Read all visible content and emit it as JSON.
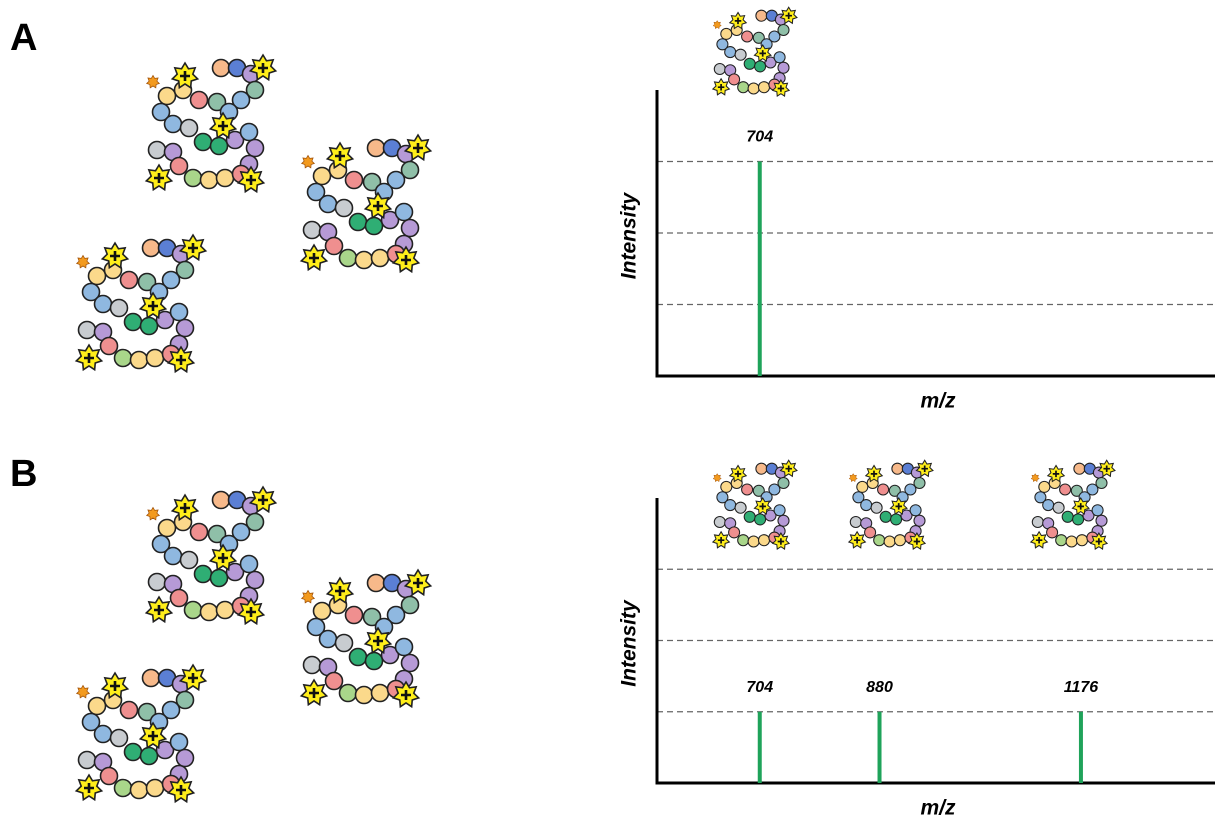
{
  "chart_data": [
    {
      "type": "spectrum",
      "panel_label": "A",
      "xlabel": "m/z",
      "ylabel": "Intensity",
      "xlim": [
        553,
        1373
      ],
      "ylim": [
        0,
        4
      ],
      "y_gridlines": [
        1,
        2,
        3
      ],
      "color": "#1fa35a",
      "x": [
        704
      ],
      "values": [
        3
      ]
    },
    {
      "type": "spectrum",
      "panel_label": "B",
      "xlabel": "m/z",
      "ylabel": "Intensity",
      "xlim": [
        553,
        1373
      ],
      "ylim": [
        0,
        4
      ],
      "y_gridlines": [
        1,
        2,
        3
      ],
      "color": "#1fa35a",
      "x": [
        704,
        880,
        1176
      ],
      "values": [
        1,
        1,
        1
      ]
    }
  ]
}
